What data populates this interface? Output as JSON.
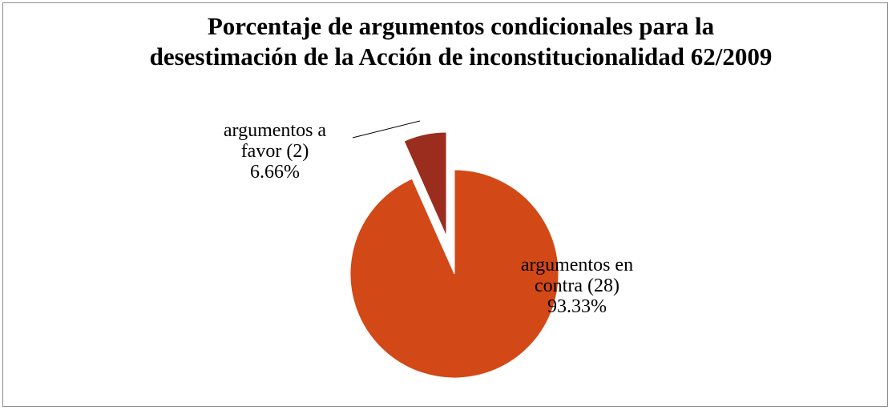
{
  "chart_data": {
    "type": "pie",
    "title": "Porcentaje de argumentos condicionales para la desestimación de la Acción de inconstitucionalidad 62/2009",
    "categories": [
      "argumentos en contra (28)",
      "argumentos a favor (2)"
    ],
    "values": [
      93.33,
      6.66
    ],
    "value_labels": [
      "93.33%",
      "6.66%"
    ],
    "colors": [
      "#d34817",
      "#9b2d1f"
    ]
  }
}
